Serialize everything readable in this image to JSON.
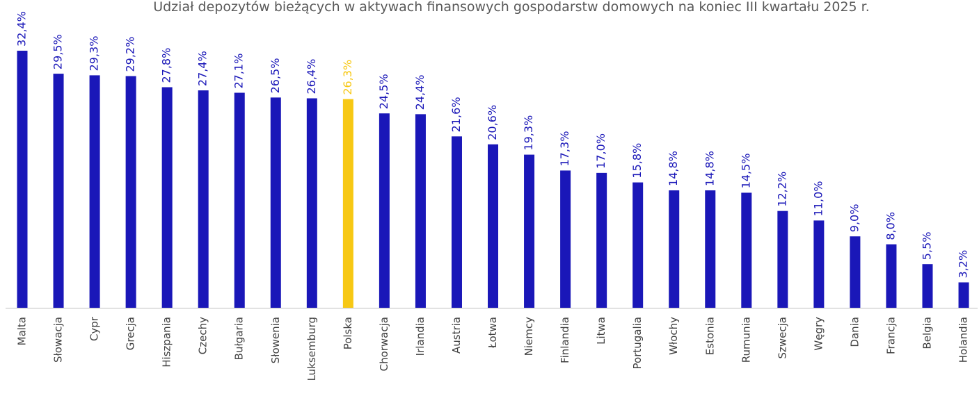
{
  "chart_data": {
    "type": "bar",
    "title": "Udział depozytów bieżących w aktywach finansowych gospodarstw domowych na koniec III kwartału 2025 r.",
    "categories": [
      "Malta",
      "Słowacja",
      "Cypr",
      "Grecja",
      "Hiszpania",
      "Czechy",
      "Bułgaria",
      "Słowenia",
      "Luksemburg",
      "Polska",
      "Chorwacja",
      "Irlandia",
      "Austria",
      "Łotwa",
      "Niemcy",
      "Finlandia",
      "Litwa",
      "Portugalia",
      "Włochy",
      "Estonia",
      "Rumunia",
      "Szwecja",
      "Węgry",
      "Dania",
      "Francja",
      "Belgia",
      "Holandia"
    ],
    "values": [
      32.4,
      29.5,
      29.3,
      29.2,
      27.8,
      27.4,
      27.1,
      26.5,
      26.4,
      26.3,
      24.5,
      24.4,
      21.6,
      20.6,
      19.3,
      17.3,
      17.0,
      15.8,
      14.8,
      14.8,
      14.5,
      12.2,
      11.0,
      9.0,
      8.0,
      5.5,
      3.2
    ],
    "value_labels": [
      "32,4%",
      "29,5%",
      "29,3%",
      "29,2%",
      "27,8%",
      "27,4%",
      "27,1%",
      "26,5%",
      "26,4%",
      "26,3%",
      "24,5%",
      "24,4%",
      "21,6%",
      "20,6%",
      "19,3%",
      "17,3%",
      "17,0%",
      "15,8%",
      "14,8%",
      "14,8%",
      "14,5%",
      "12,2%",
      "11,0%",
      "9,0%",
      "8,0%",
      "5,5%",
      "3,2%"
    ],
    "colors": [
      "#1a17b8",
      "#1a17b8",
      "#1a17b8",
      "#1a17b8",
      "#1a17b8",
      "#1a17b8",
      "#1a17b8",
      "#1a17b8",
      "#1a17b8",
      "#f7c814",
      "#1a17b8",
      "#1a17b8",
      "#1a17b8",
      "#1a17b8",
      "#1a17b8",
      "#1a17b8",
      "#1a17b8",
      "#1a17b8",
      "#1a17b8",
      "#1a17b8",
      "#1a17b8",
      "#1a17b8",
      "#1a17b8",
      "#1a17b8",
      "#1a17b8",
      "#1a17b8",
      "#1a17b8"
    ]
  }
}
